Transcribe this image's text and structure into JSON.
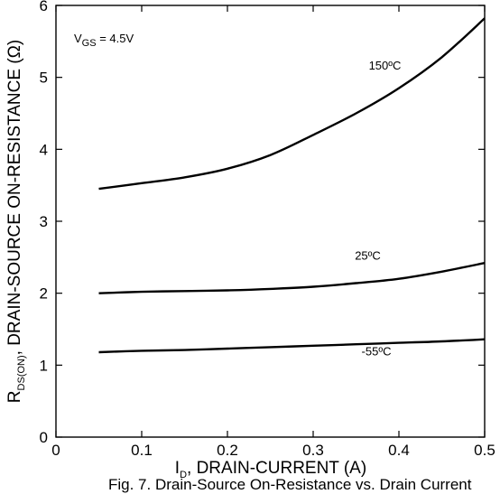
{
  "chart_data": {
    "type": "line",
    "title": "",
    "xlabel": {
      "symbol": "I",
      "subscript": "D",
      "text": ", DRAIN-CURRENT (A)"
    },
    "ylabel": {
      "symbol": "R",
      "subscript": "DS(ON)",
      "text": ", DRAIN-SOURCE ON-RESISTANCE (Ω)"
    },
    "xlim": [
      0,
      0.5
    ],
    "ylim": [
      0,
      6
    ],
    "xticks": [
      "0",
      "0.1",
      "0.2",
      "0.3",
      "0.4",
      "0.5"
    ],
    "yticks": [
      "0",
      "1",
      "2",
      "3",
      "4",
      "5",
      "6"
    ],
    "grid": false,
    "condition": {
      "symbol": "V",
      "subscript": "GS",
      "text": " = 4.5V"
    },
    "series": [
      {
        "name": "150ºC",
        "x": [
          0.05,
          0.1,
          0.15,
          0.2,
          0.25,
          0.3,
          0.35,
          0.4,
          0.45,
          0.5
        ],
        "y": [
          3.45,
          3.53,
          3.61,
          3.73,
          3.92,
          4.2,
          4.5,
          4.85,
          5.28,
          5.82
        ]
      },
      {
        "name": "25ºC",
        "x": [
          0.05,
          0.1,
          0.15,
          0.2,
          0.25,
          0.3,
          0.35,
          0.4,
          0.45,
          0.5
        ],
        "y": [
          2.0,
          2.02,
          2.03,
          2.04,
          2.06,
          2.09,
          2.14,
          2.2,
          2.3,
          2.42
        ]
      },
      {
        "name": "-55ºC",
        "x": [
          0.05,
          0.1,
          0.15,
          0.2,
          0.25,
          0.3,
          0.35,
          0.4,
          0.45,
          0.5
        ],
        "y": [
          1.18,
          1.2,
          1.21,
          1.23,
          1.25,
          1.27,
          1.29,
          1.31,
          1.33,
          1.36
        ]
      }
    ]
  },
  "caption": "Fig. 7. Drain-Source On-Resistance vs. Drain Current"
}
